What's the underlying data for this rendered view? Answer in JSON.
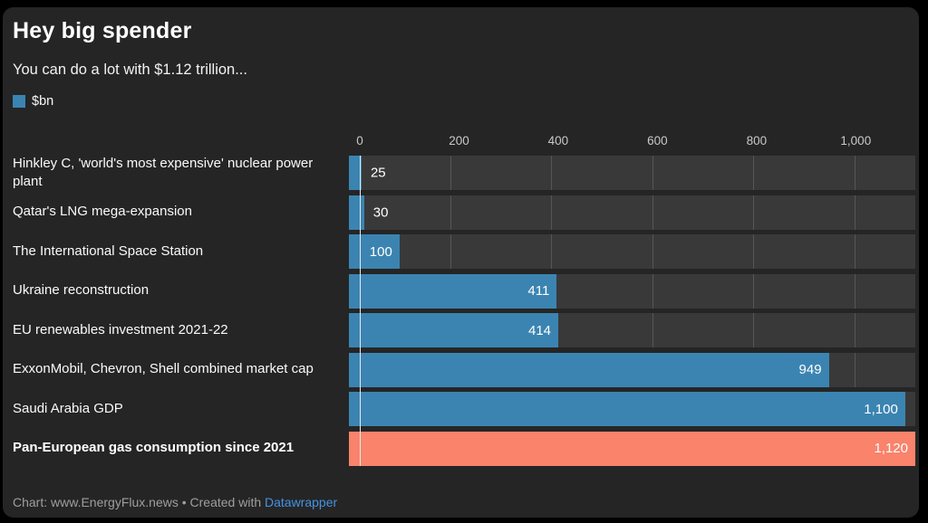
{
  "header": {
    "title": "Hey big spender",
    "subtitle": "You can do a lot with $1.12 trillion...",
    "legend_label": "$bn"
  },
  "colors": {
    "bar": "#3b84b1",
    "highlight_bar": "#f9836b",
    "track": "#393939",
    "card_background": "#252525",
    "link": "#4493e4"
  },
  "chart_data": {
    "type": "bar",
    "orientation": "horizontal",
    "title": "Hey big spender",
    "subtitle": "You can do a lot with $1.12 trillion...",
    "unit": "$bn",
    "xlim": [
      0,
      1120
    ],
    "x_tick_values": [
      0,
      200,
      400,
      600,
      800,
      1000
    ],
    "x_tick_labels": [
      "0",
      "200",
      "400",
      "600",
      "800",
      "1,000"
    ],
    "grid": true,
    "legend": [
      "$bn"
    ],
    "categories": [
      "Hinkley C, 'world's most expensive' nuclear power plant",
      "Qatar's LNG mega-expansion",
      "The International Space Station",
      "Ukraine reconstruction",
      "EU renewables investment 2021-22",
      "ExxonMobil, Chevron, Shell combined market cap",
      "Saudi Arabia GDP",
      "Pan-European gas consumption since 2021"
    ],
    "values": [
      25,
      30,
      100,
      411,
      414,
      949,
      1100,
      1120
    ],
    "value_labels": [
      "25",
      "30",
      "100",
      "411",
      "414",
      "949",
      "1,100",
      "1,120"
    ],
    "highlight_index": 7
  },
  "footer": {
    "credit_text": "Chart: www.EnergyFlux.news • Created with ",
    "link_label": "Datawrapper"
  }
}
